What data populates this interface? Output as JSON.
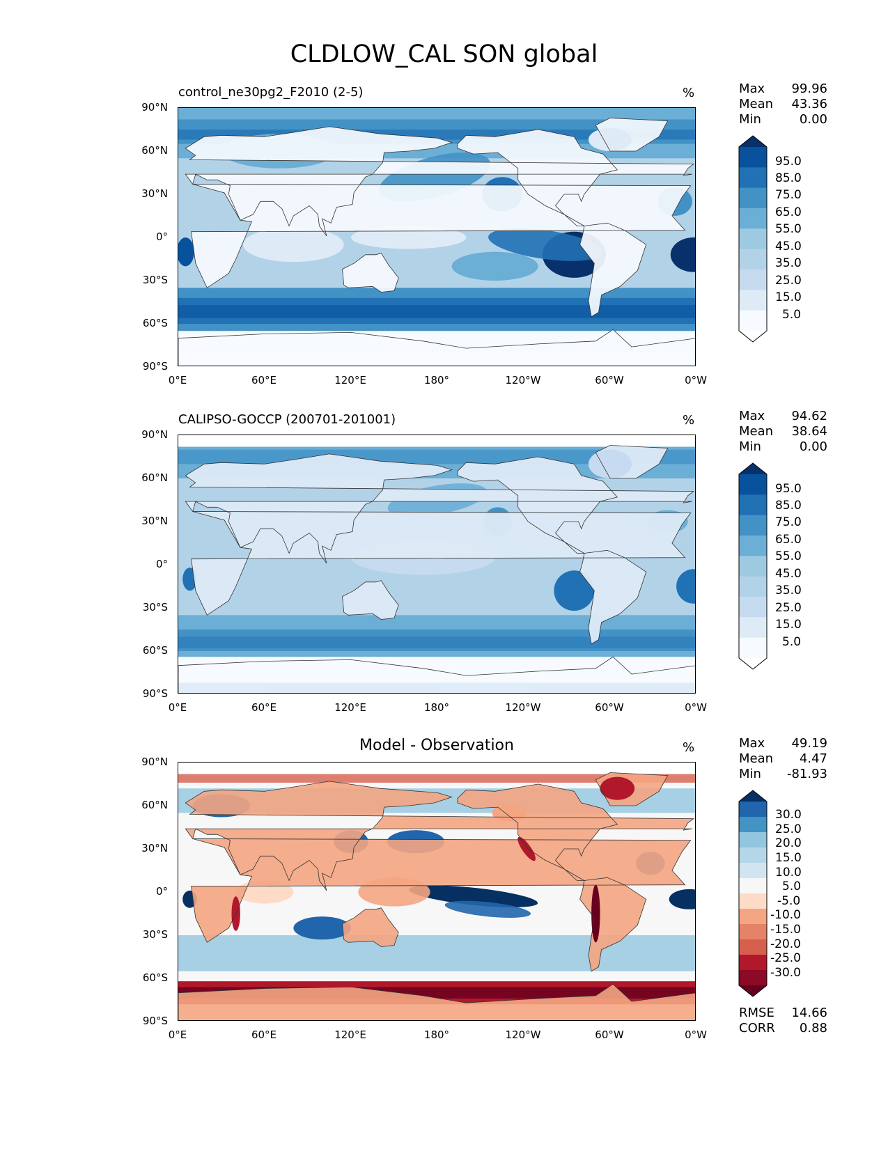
{
  "suptitle": "CLDLOW_CAL SON global",
  "colors": {
    "blues": [
      "#f7fbff",
      "#deebf7",
      "#c6dbef",
      "#b2d2e8",
      "#9ecae1",
      "#6baed6",
      "#4292c6",
      "#2171b5",
      "#08519c",
      "#08306b"
    ],
    "diverging": [
      "#67001f",
      "#b2182b",
      "#d6604d",
      "#f4a582",
      "#fddbc7",
      "#f7f7f7",
      "#d1e5f0",
      "#92c5de",
      "#4393c3",
      "#2166ac",
      "#053061"
    ],
    "land_outline": "#333333"
  },
  "chart_data": [
    {
      "type": "heatmap",
      "title_left": "control_ne30pg2_F2010 (2-5)",
      "units": "%",
      "xticks": [
        "0°E",
        "60°E",
        "120°E",
        "180°",
        "120°W",
        "60°W",
        "0°W"
      ],
      "yticks": [
        "90°N",
        "60°N",
        "30°N",
        "0°",
        "30°S",
        "60°S",
        "90°S"
      ],
      "stats": {
        "labels": [
          "Max",
          "Mean",
          "Min"
        ],
        "values": [
          "99.96",
          "43.36",
          "0.00"
        ]
      },
      "colorbar": {
        "labels": [
          "95.0",
          "85.0",
          "75.0",
          "65.0",
          "55.0",
          "45.0",
          "35.0",
          "25.0",
          "15.0",
          "5.0"
        ]
      }
    },
    {
      "type": "heatmap",
      "title_left": "CALIPSO-GOCCP (200701-201001)",
      "units": "%",
      "xticks": [
        "0°E",
        "60°E",
        "120°E",
        "180°",
        "120°W",
        "60°W",
        "0°W"
      ],
      "yticks": [
        "90°N",
        "60°N",
        "30°N",
        "0°",
        "30°S",
        "60°S",
        "90°S"
      ],
      "stats": {
        "labels": [
          "Max",
          "Mean",
          "Min"
        ],
        "values": [
          "94.62",
          "38.64",
          "0.00"
        ]
      },
      "colorbar": {
        "labels": [
          "95.0",
          "85.0",
          "75.0",
          "65.0",
          "55.0",
          "45.0",
          "35.0",
          "25.0",
          "15.0",
          "5.0"
        ]
      }
    },
    {
      "type": "heatmap",
      "title_center": "Model - Observation",
      "units": "%",
      "xticks": [
        "0°E",
        "60°E",
        "120°E",
        "180°",
        "120°W",
        "60°W",
        "0°W"
      ],
      "yticks": [
        "90°N",
        "60°N",
        "30°N",
        "0°",
        "30°S",
        "60°S",
        "90°S"
      ],
      "stats": {
        "labels": [
          "Max",
          "Mean",
          "Min"
        ],
        "values": [
          "49.19",
          "4.47",
          "-81.93"
        ]
      },
      "colorbar": {
        "labels": [
          "30.0",
          "25.0",
          "20.0",
          "15.0",
          "10.0",
          "5.0",
          "-5.0",
          "-10.0",
          "-15.0",
          "-20.0",
          "-25.0",
          "-30.0"
        ]
      },
      "extra_stats": {
        "labels": [
          "RMSE",
          "CORR"
        ],
        "values": [
          "14.66",
          "0.88"
        ]
      }
    }
  ]
}
